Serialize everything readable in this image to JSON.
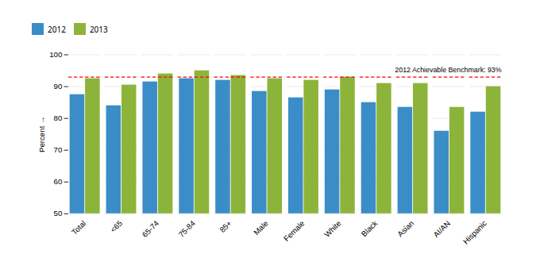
{
  "chart_data": {
    "type": "bar",
    "categories": [
      "Total",
      "<65",
      "65-74",
      "75-84",
      "85+",
      "Male",
      "Female",
      "White",
      "Black",
      "Asian",
      "AI/AN",
      "Hispanic"
    ],
    "series": [
      {
        "name": "2012",
        "color": "#3B8DC8",
        "values": [
          87.5,
          84.0,
          91.5,
          92.5,
          92.0,
          88.5,
          86.5,
          89.0,
          85.0,
          83.5,
          76.0,
          82.0
        ]
      },
      {
        "name": "2013",
        "color": "#8DB43A",
        "values": [
          92.5,
          90.5,
          94.0,
          95.0,
          93.5,
          92.5,
          92.0,
          93.0,
          91.0,
          91.0,
          83.5,
          90.0
        ]
      }
    ],
    "ylabel": "Percent",
    "ylim": [
      50,
      100
    ],
    "yticks": [
      50,
      60,
      70,
      80,
      90,
      100
    ],
    "grid": true,
    "legend": "top",
    "benchmark": {
      "value": 93,
      "label": "2012 Achievable Benchmark: 93%",
      "color": "#FF0000",
      "line_style": "dashed"
    }
  }
}
